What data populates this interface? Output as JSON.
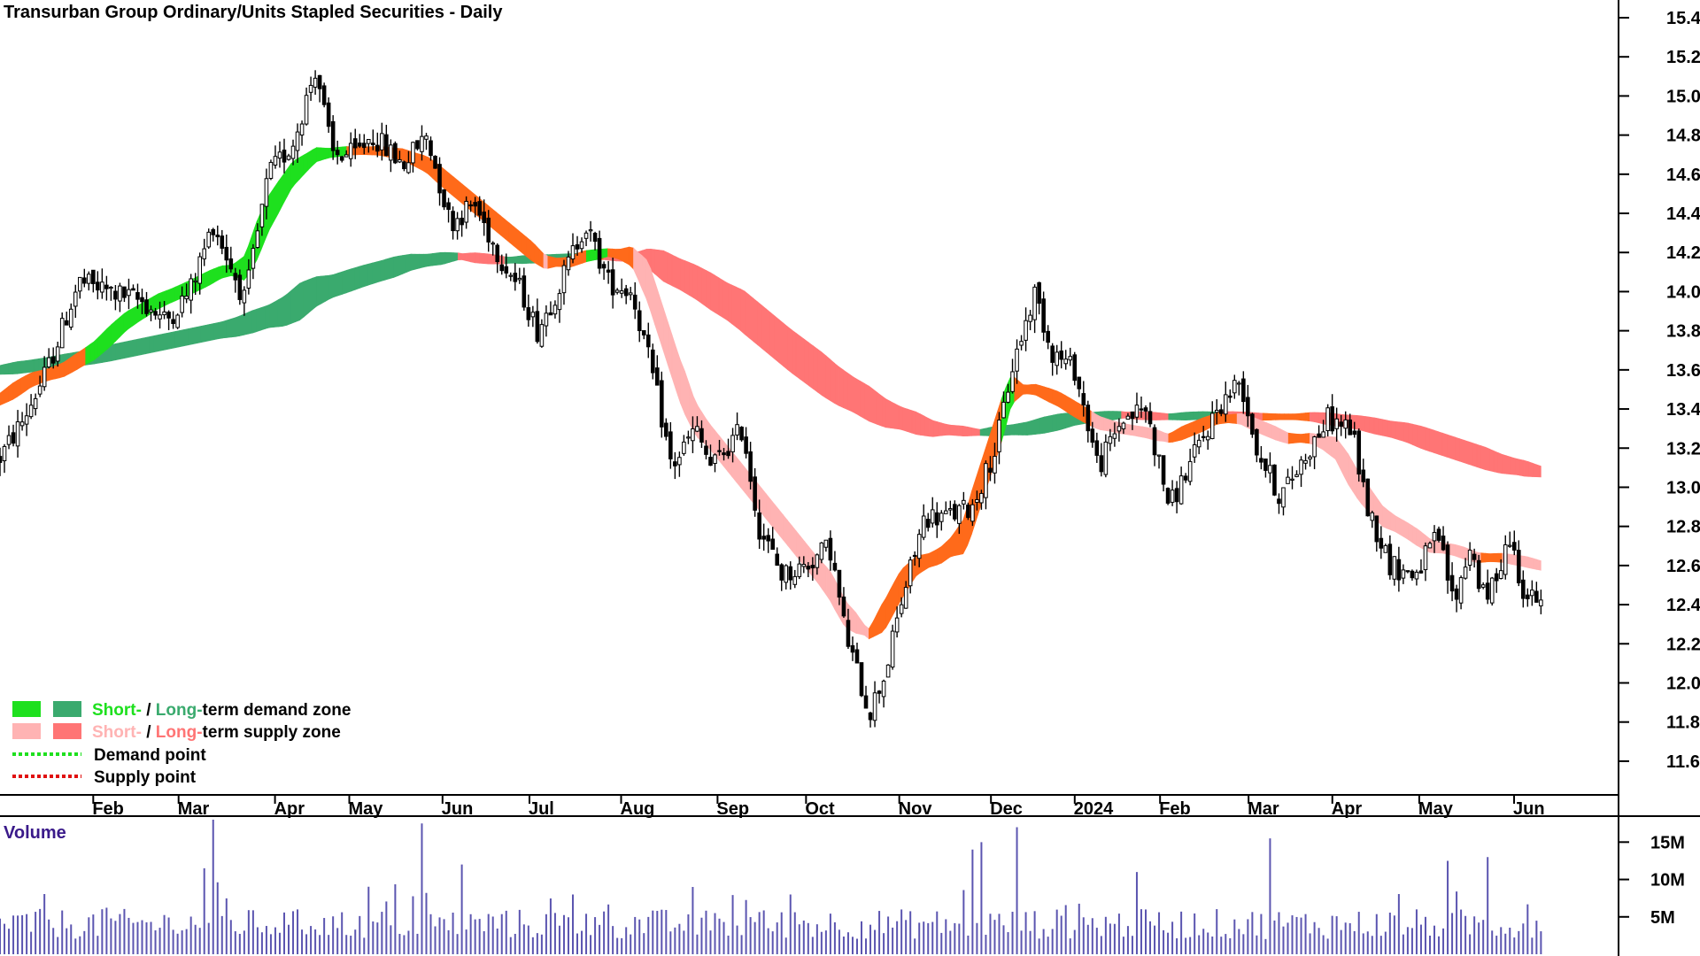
{
  "title": "Transurban Group Ordinary/Units Stapled Securities - Daily",
  "colors": {
    "short_demand": "#1ee01e",
    "long_demand": "#3aaa6e",
    "short_supply": "#ffb3b3",
    "long_supply": "#ff7575",
    "transition": "#ff6a1a",
    "candle": "#000000",
    "volume": "#5b55b0",
    "volume_label": "#3a1a8a"
  },
  "legend": {
    "demand_short": "Short-",
    "demand_sep": " / ",
    "demand_long": "Long-",
    "demand_rest": "term demand zone",
    "supply_short": "Short-",
    "supply_sep": " / ",
    "supply_long": "Long-",
    "supply_rest": "term supply zone",
    "demand_point": "Demand point",
    "supply_point": "Supply point"
  },
  "volume_panel": {
    "label": "Volume",
    "ticks": [
      {
        "value": 15,
        "label": "15M"
      },
      {
        "value": 10,
        "label": "10M"
      },
      {
        "value": 5,
        "label": "5M"
      }
    ]
  },
  "chart_data": {
    "type": "candlestick",
    "title": "Transurban Group Ordinary/Units Stapled Securities - Daily",
    "y_axis": {
      "range": [
        11.5,
        15.4
      ],
      "ticks": [
        "11.6",
        "11.8",
        "12.0",
        "12.2",
        "12.4",
        "12.6",
        "12.8",
        "13.0",
        "13.2",
        "13.4",
        "13.6",
        "13.8",
        "14.0",
        "14.2",
        "14.4",
        "14.6",
        "14.8",
        "15.0",
        "15.2",
        "15.4"
      ],
      "position": "right"
    },
    "x_axis": {
      "range": [
        0,
        100
      ],
      "ticks": [
        {
          "label": "Feb",
          "pos": 5.9
        },
        {
          "label": "Mar",
          "pos": 11.3
        },
        {
          "label": "Apr",
          "pos": 17.4
        },
        {
          "label": "May",
          "pos": 22.1
        },
        {
          "label": "Jun",
          "pos": 28.0
        },
        {
          "label": "Jul",
          "pos": 33.5
        },
        {
          "label": "Aug",
          "pos": 39.3
        },
        {
          "label": "Sep",
          "pos": 45.4
        },
        {
          "label": "Oct",
          "pos": 51.0
        },
        {
          "label": "Nov",
          "pos": 56.9
        },
        {
          "label": "Dec",
          "pos": 62.7
        },
        {
          "label": "2024",
          "pos": 68.0
        },
        {
          "label": "Feb",
          "pos": 73.4
        },
        {
          "label": "Mar",
          "pos": 79.0
        },
        {
          "label": "Apr",
          "pos": 84.3
        },
        {
          "label": "May",
          "pos": 89.8
        },
        {
          "label": "Jun",
          "pos": 95.8
        }
      ]
    },
    "price_path": [
      [
        0,
        13.15
      ],
      [
        1.5,
        13.35
      ],
      [
        3,
        13.6
      ],
      [
        5,
        14.05
      ],
      [
        7,
        14.0
      ],
      [
        9,
        13.95
      ],
      [
        10.5,
        13.85
      ],
      [
        12,
        14.0
      ],
      [
        13.5,
        14.35
      ],
      [
        15.5,
        13.95
      ],
      [
        17,
        14.6
      ],
      [
        18.5,
        14.75
      ],
      [
        20,
        15.15
      ],
      [
        21,
        14.7
      ],
      [
        22.5,
        14.7
      ],
      [
        23.5,
        14.8
      ],
      [
        25.5,
        14.65
      ],
      [
        27,
        14.8
      ],
      [
        28.5,
        14.35
      ],
      [
        30,
        14.45
      ],
      [
        31.5,
        14.2
      ],
      [
        33,
        14.0
      ],
      [
        34,
        13.8
      ],
      [
        35.5,
        14.05
      ],
      [
        37,
        14.35
      ],
      [
        38.5,
        14.05
      ],
      [
        40,
        14.0
      ],
      [
        41.5,
        13.5
      ],
      [
        42.5,
        13.1
      ],
      [
        44,
        13.3
      ],
      [
        45,
        13.1
      ],
      [
        47,
        13.3
      ],
      [
        48,
        12.8
      ],
      [
        49.5,
        12.55
      ],
      [
        51,
        12.6
      ],
      [
        52.5,
        12.7
      ],
      [
        53.5,
        12.25
      ],
      [
        55,
        11.85
      ],
      [
        56,
        12.05
      ],
      [
        57,
        12.4
      ],
      [
        58.5,
        12.85
      ],
      [
        60,
        12.85
      ],
      [
        61.5,
        12.9
      ],
      [
        63,
        13.2
      ],
      [
        64,
        13.6
      ],
      [
        65.5,
        14.0
      ],
      [
        66.5,
        13.7
      ],
      [
        68,
        13.6
      ],
      [
        69.5,
        13.1
      ],
      [
        71,
        13.35
      ],
      [
        72.5,
        13.4
      ],
      [
        74,
        12.9
      ],
      [
        75.5,
        13.15
      ],
      [
        77,
        13.4
      ],
      [
        78.5,
        13.55
      ],
      [
        79.5,
        13.2
      ],
      [
        81,
        12.95
      ],
      [
        82.5,
        13.15
      ],
      [
        84,
        13.35
      ],
      [
        85.5,
        13.3
      ],
      [
        86.5,
        12.9
      ],
      [
        88,
        12.6
      ],
      [
        89.5,
        12.55
      ],
      [
        91,
        12.75
      ],
      [
        92,
        12.4
      ],
      [
        93,
        12.7
      ],
      [
        94,
        12.4
      ],
      [
        95.5,
        12.75
      ],
      [
        96.5,
        12.45
      ],
      [
        97.5,
        12.4
      ]
    ],
    "zones": {
      "short_term_center": [
        [
          0,
          13.45
        ],
        [
          2,
          13.55
        ],
        [
          4,
          13.6
        ],
        [
          6,
          13.7
        ],
        [
          8,
          13.85
        ],
        [
          10,
          13.95
        ],
        [
          12,
          14.02
        ],
        [
          14,
          14.1
        ],
        [
          15.5,
          14.12
        ],
        [
          17,
          14.4
        ],
        [
          18.5,
          14.6
        ],
        [
          20,
          14.7
        ],
        [
          22,
          14.72
        ],
        [
          24,
          14.72
        ],
        [
          25.5,
          14.7
        ],
        [
          27,
          14.65
        ],
        [
          28.5,
          14.55
        ],
        [
          30,
          14.45
        ],
        [
          31.5,
          14.35
        ],
        [
          33,
          14.25
        ],
        [
          34.5,
          14.15
        ],
        [
          36,
          14.15
        ],
        [
          37,
          14.18
        ],
        [
          38.5,
          14.2
        ],
        [
          40,
          14.18
        ],
        [
          41,
          14.05
        ],
        [
          42,
          13.8
        ],
        [
          43,
          13.55
        ],
        [
          44,
          13.35
        ],
        [
          45.5,
          13.2
        ],
        [
          47,
          13.05
        ],
        [
          48,
          12.95
        ],
        [
          49.5,
          12.8
        ],
        [
          51,
          12.65
        ],
        [
          52.5,
          12.5
        ],
        [
          53.5,
          12.35
        ],
        [
          55,
          12.25
        ],
        [
          56,
          12.35
        ],
        [
          57,
          12.5
        ],
        [
          58,
          12.6
        ],
        [
          59.5,
          12.65
        ],
        [
          61,
          12.75
        ],
        [
          62,
          13.0
        ],
        [
          63,
          13.25
        ],
        [
          64,
          13.5
        ],
        [
          65.5,
          13.5
        ],
        [
          67,
          13.45
        ],
        [
          68,
          13.4
        ],
        [
          69.5,
          13.33
        ],
        [
          71,
          13.3
        ],
        [
          72.5,
          13.28
        ],
        [
          74,
          13.25
        ],
        [
          75.5,
          13.3
        ],
        [
          77,
          13.35
        ],
        [
          78.5,
          13.35
        ],
        [
          80,
          13.3
        ],
        [
          81.5,
          13.25
        ],
        [
          83,
          13.25
        ],
        [
          84.5,
          13.2
        ],
        [
          86,
          13.0
        ],
        [
          87.5,
          12.85
        ],
        [
          89,
          12.78
        ],
        [
          90.5,
          12.7
        ],
        [
          92,
          12.68
        ],
        [
          93.5,
          12.64
        ],
        [
          95,
          12.64
        ],
        [
          96.5,
          12.62
        ],
        [
          97.5,
          12.6
        ]
      ],
      "short_term_width": 0.1,
      "long_term_center": [
        [
          0,
          13.6
        ],
        [
          3,
          13.63
        ],
        [
          6,
          13.67
        ],
        [
          9,
          13.72
        ],
        [
          12,
          13.77
        ],
        [
          15,
          13.82
        ],
        [
          18,
          13.9
        ],
        [
          20,
          14.0
        ],
        [
          23,
          14.08
        ],
        [
          26,
          14.15
        ],
        [
          29,
          14.18
        ],
        [
          32,
          14.16
        ],
        [
          35,
          14.17
        ],
        [
          38,
          14.18
        ],
        [
          41,
          14.17
        ],
        [
          44,
          14.05
        ],
        [
          47,
          13.9
        ],
        [
          50,
          13.7
        ],
        [
          53,
          13.52
        ],
        [
          56,
          13.38
        ],
        [
          59,
          13.3
        ],
        [
          62,
          13.28
        ],
        [
          65,
          13.3
        ],
        [
          68,
          13.35
        ],
        [
          71,
          13.37
        ],
        [
          74,
          13.36
        ],
        [
          77,
          13.37
        ],
        [
          80,
          13.36
        ],
        [
          83,
          13.36
        ],
        [
          86,
          13.33
        ],
        [
          89,
          13.28
        ],
        [
          92,
          13.2
        ],
        [
          95,
          13.12
        ],
        [
          97.5,
          13.08
        ]
      ],
      "long_term_width_min": 0.03,
      "long_term_width_max": 0.22
    },
    "volume": {
      "unit": "M",
      "range": [
        0,
        18
      ],
      "spikes": [
        {
          "x": 13.0,
          "value": 11.5
        },
        {
          "x": 13.5,
          "value": 18.0
        },
        {
          "x": 26.6,
          "value": 17.5
        },
        {
          "x": 29.3,
          "value": 12.0
        },
        {
          "x": 36.2,
          "value": 8.0
        },
        {
          "x": 43.8,
          "value": 9.0
        },
        {
          "x": 61.5,
          "value": 14.0
        },
        {
          "x": 62.0,
          "value": 15.0
        },
        {
          "x": 64.3,
          "value": 17.0
        },
        {
          "x": 71.8,
          "value": 11.0
        },
        {
          "x": 80.3,
          "value": 15.5
        },
        {
          "x": 91.5,
          "value": 12.5
        },
        {
          "x": 94.0,
          "value": 13.0
        }
      ],
      "baseline_typical": 4.5
    }
  }
}
